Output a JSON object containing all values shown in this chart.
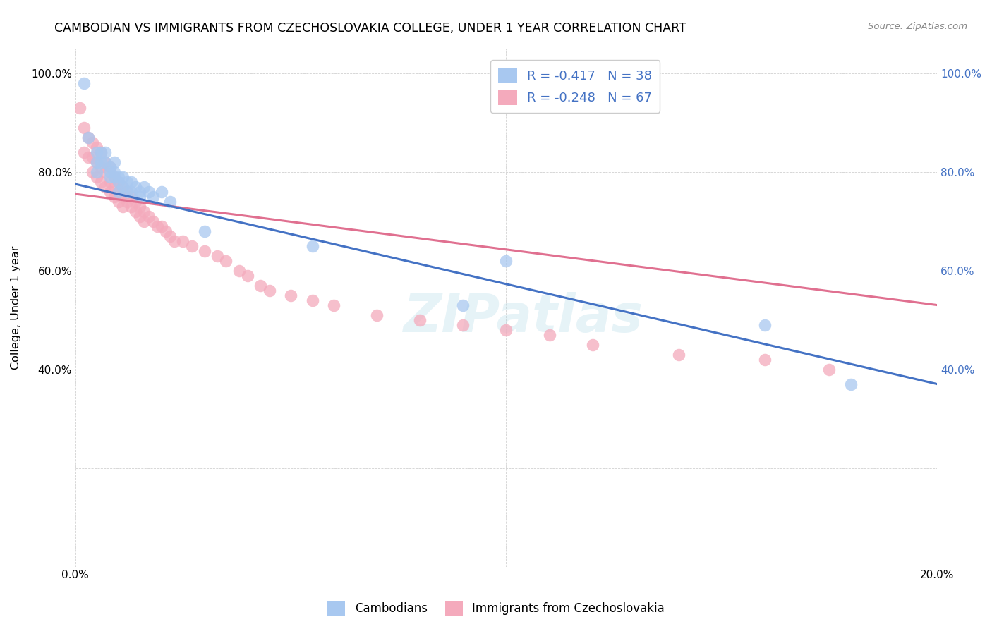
{
  "title": "CAMBODIAN VS IMMIGRANTS FROM CZECHOSLOVAKIA COLLEGE, UNDER 1 YEAR CORRELATION CHART",
  "source": "Source: ZipAtlas.com",
  "ylabel": "College, Under 1 year",
  "legend_label_1": "Cambodians",
  "legend_label_2": "Immigrants from Czechoslovakia",
  "R1": -0.417,
  "N1": 38,
  "R2": -0.248,
  "N2": 67,
  "color1": "#A8C8F0",
  "color2": "#F4AABC",
  "line_color1": "#4472C4",
  "line_color2": "#E07090",
  "xlim": [
    0.0,
    0.2
  ],
  "ylim": [
    0.0,
    1.05
  ],
  "watermark": "ZIPatlas",
  "scatter1_x": [
    0.002,
    0.003,
    0.005,
    0.005,
    0.005,
    0.006,
    0.006,
    0.007,
    0.007,
    0.008,
    0.008,
    0.008,
    0.009,
    0.009,
    0.009,
    0.01,
    0.01,
    0.01,
    0.011,
    0.011,
    0.012,
    0.012,
    0.013,
    0.013,
    0.014,
    0.015,
    0.015,
    0.016,
    0.017,
    0.018,
    0.02,
    0.022,
    0.03,
    0.055,
    0.09,
    0.1,
    0.16,
    0.18
  ],
  "scatter1_y": [
    0.98,
    0.87,
    0.84,
    0.82,
    0.8,
    0.84,
    0.82,
    0.84,
    0.82,
    0.81,
    0.8,
    0.79,
    0.82,
    0.8,
    0.79,
    0.79,
    0.78,
    0.76,
    0.79,
    0.77,
    0.78,
    0.76,
    0.78,
    0.76,
    0.77,
    0.76,
    0.75,
    0.77,
    0.76,
    0.75,
    0.76,
    0.74,
    0.68,
    0.65,
    0.53,
    0.62,
    0.49,
    0.37
  ],
  "scatter2_x": [
    0.001,
    0.002,
    0.002,
    0.003,
    0.003,
    0.004,
    0.004,
    0.004,
    0.005,
    0.005,
    0.005,
    0.006,
    0.006,
    0.006,
    0.007,
    0.007,
    0.007,
    0.008,
    0.008,
    0.008,
    0.009,
    0.009,
    0.009,
    0.01,
    0.01,
    0.01,
    0.011,
    0.011,
    0.011,
    0.012,
    0.012,
    0.013,
    0.013,
    0.014,
    0.014,
    0.015,
    0.015,
    0.016,
    0.016,
    0.017,
    0.018,
    0.019,
    0.02,
    0.021,
    0.022,
    0.023,
    0.025,
    0.027,
    0.03,
    0.033,
    0.035,
    0.038,
    0.04,
    0.043,
    0.045,
    0.05,
    0.055,
    0.06,
    0.07,
    0.08,
    0.09,
    0.1,
    0.11,
    0.12,
    0.14,
    0.16,
    0.175
  ],
  "scatter2_y": [
    0.93,
    0.89,
    0.84,
    0.87,
    0.83,
    0.86,
    0.83,
    0.8,
    0.85,
    0.82,
    0.79,
    0.84,
    0.81,
    0.78,
    0.82,
    0.8,
    0.77,
    0.81,
    0.78,
    0.76,
    0.79,
    0.77,
    0.75,
    0.78,
    0.76,
    0.74,
    0.77,
    0.75,
    0.73,
    0.76,
    0.74,
    0.75,
    0.73,
    0.74,
    0.72,
    0.73,
    0.71,
    0.72,
    0.7,
    0.71,
    0.7,
    0.69,
    0.69,
    0.68,
    0.67,
    0.66,
    0.66,
    0.65,
    0.64,
    0.63,
    0.62,
    0.6,
    0.59,
    0.57,
    0.56,
    0.55,
    0.54,
    0.53,
    0.51,
    0.5,
    0.49,
    0.48,
    0.47,
    0.45,
    0.43,
    0.42,
    0.4
  ],
  "xticks": [
    0.0,
    0.05,
    0.1,
    0.15,
    0.2
  ],
  "yticks": [
    0.0,
    0.2,
    0.4,
    0.6,
    0.8,
    1.0
  ],
  "blue_line_x0": 0.0,
  "blue_line_y0": 0.775,
  "blue_line_x1": 0.2,
  "blue_line_y1": 0.37,
  "pink_line_x0": 0.0,
  "pink_line_y0": 0.755,
  "pink_line_x1": 0.2,
  "pink_line_y1": 0.53
}
